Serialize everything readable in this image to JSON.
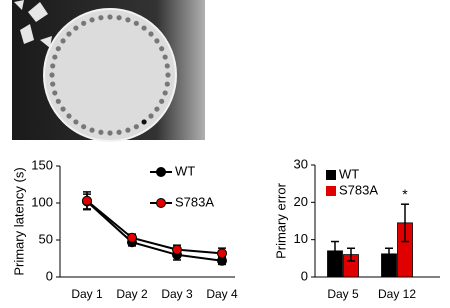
{
  "chart_data": [
    {
      "type": "line",
      "ylabel": "Primary latency (s)",
      "categories": [
        "Day 1",
        "Day 2",
        "Day 3",
        "Day 4"
      ],
      "series": [
        {
          "name": "WT",
          "color": "#000000",
          "values": [
            102,
            47,
            30,
            22
          ],
          "errors": [
            10,
            5,
            7,
            5
          ]
        },
        {
          "name": "S783A",
          "color": "#e00000",
          "values": [
            103,
            53,
            37,
            32
          ],
          "errors": [
            12,
            5,
            6,
            7
          ]
        }
      ],
      "ylim": [
        0,
        150
      ],
      "yticks": [
        0,
        50,
        100,
        150
      ]
    },
    {
      "type": "bar",
      "ylabel": "Primary error",
      "categories": [
        "Day 5",
        "Day 12"
      ],
      "series": [
        {
          "name": "WT",
          "color": "#000000",
          "values": [
            7,
            6.2
          ],
          "errors": [
            2.5,
            1.5
          ]
        },
        {
          "name": "S783A",
          "color": "#e00000",
          "values": [
            6,
            14.5
          ],
          "errors": [
            1.7,
            5
          ]
        }
      ],
      "ylim": [
        0,
        30
      ],
      "yticks": [
        0,
        10,
        20,
        30
      ],
      "annotations": [
        {
          "text": "*"
        }
      ]
    }
  ]
}
